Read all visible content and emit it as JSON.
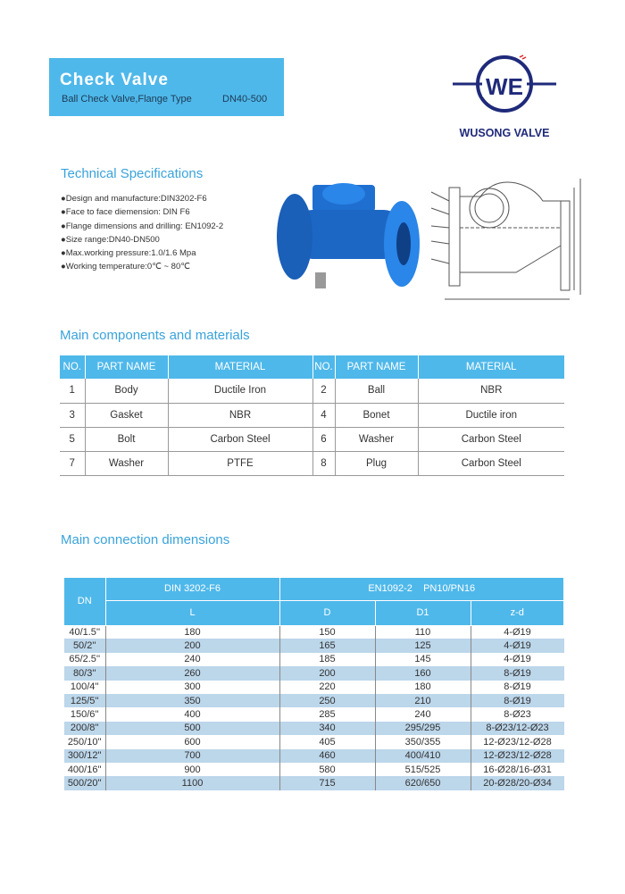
{
  "header": {
    "title": "Check Valve",
    "subtitle": "Ball Check Valve,Flange Type",
    "size": "DN40-500"
  },
  "logo": {
    "text": "WUSONG VALVE",
    "color": "#1f2a7a"
  },
  "specs": {
    "title": "Technical Specifications",
    "items": [
      "●Design and manufacture:DIN3202-F6",
      "●Face to face diemension: DIN F6",
      "●Flange dimensions and drilling: EN1092-2",
      "●Size range:DN40-DN500",
      "●Max.working pressure:1.0/1.6 Mpa",
      "●Working temperature:0℃ ~ 80℃"
    ]
  },
  "components": {
    "title": "Main components and materials",
    "headers": [
      "NO.",
      "PART NAME",
      "MATERIAL",
      "NO.",
      "PART NAME",
      "MATERIAL"
    ],
    "rows": [
      [
        "1",
        "Body",
        "Ductile Iron",
        "2",
        "Ball",
        "NBR"
      ],
      [
        "3",
        "Gasket",
        "NBR",
        "4",
        "Bonet",
        "Ductile iron"
      ],
      [
        "5",
        "Bolt",
        "Carbon Steel",
        "6",
        "Washer",
        "Carbon Steel"
      ],
      [
        "7",
        "Washer",
        "PTFE",
        "8",
        "Plug",
        "Carbon Steel"
      ]
    ]
  },
  "dimensions": {
    "title": "Main connection dimensions",
    "dn_header": "DN",
    "std1": "DIN 3202-F6",
    "std2": "EN1092-2    PN10/PN16",
    "cols": [
      "L",
      "D",
      "D1",
      "z-d"
    ],
    "rows": [
      [
        "40/1.5''",
        "180",
        "150",
        "110",
        "4-Ø19"
      ],
      [
        "50/2''",
        "200",
        "165",
        "125",
        "4-Ø19"
      ],
      [
        "65/2.5''",
        "240",
        "185",
        "145",
        "4-Ø19"
      ],
      [
        "80/3''",
        "260",
        "200",
        "160",
        "8-Ø19"
      ],
      [
        "100/4''",
        "300",
        "220",
        "180",
        "8-Ø19"
      ],
      [
        "125/5''",
        "350",
        "250",
        "210",
        "8-Ø19"
      ],
      [
        "150/6''",
        "400",
        "285",
        "240",
        "8-Ø23"
      ],
      [
        "200/8''",
        "500",
        "340",
        "295/295",
        "8-Ø23/12-Ø23"
      ],
      [
        "250/10''",
        "600",
        "405",
        "350/355",
        "12-Ø23/12-Ø28"
      ],
      [
        "300/12''",
        "700",
        "460",
        "400/410",
        "12-Ø23/12-Ø28"
      ],
      [
        "400/16''",
        "900",
        "580",
        "515/525",
        "16-Ø28/16-Ø31"
      ],
      [
        "500/20''",
        "1100",
        "715",
        "620/650",
        "20-Ø28/20-Ø34"
      ]
    ]
  },
  "colors": {
    "accent": "#4fb8ea",
    "row_alt": "#bcd6ea",
    "valve": "#1f6fd0"
  }
}
